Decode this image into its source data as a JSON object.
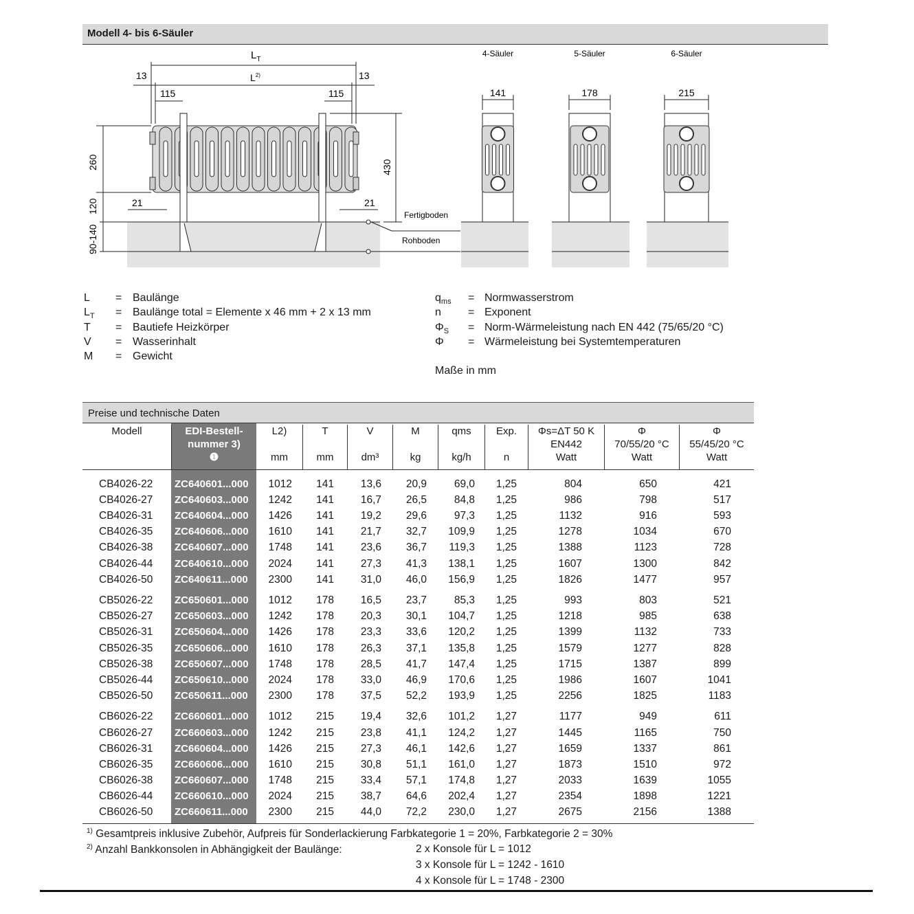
{
  "header": {
    "title": "Modell 4- bis 6-Säuler"
  },
  "diagram": {
    "front": {
      "lt": "L",
      "lt_sub": "T",
      "l": "L",
      "l_sup": "2)",
      "dim_13_left": "13",
      "dim_13_right": "13",
      "dim_115_left": "115",
      "dim_115_right": "115",
      "dim_260": "260",
      "dim_120": "120",
      "dim_90_140": "90-140",
      "dim_430": "430",
      "dim_21_left": "21",
      "dim_21_right": "21",
      "fertigboden": "Fertigboden",
      "rohboden": "Rohboden"
    },
    "side_views": [
      {
        "title": "4-Säuler",
        "width": "141"
      },
      {
        "title": "5-Säuler",
        "width": "178"
      },
      {
        "title": "6-Säuler",
        "width": "215"
      }
    ]
  },
  "legend": {
    "left": [
      {
        "sym": "L",
        "sub": "",
        "text": "Baulänge"
      },
      {
        "sym": "L",
        "sub": "T",
        "text": "Baulänge total = Elemente x 46 mm + 2 x 13 mm"
      },
      {
        "sym": "T",
        "sub": "",
        "text": "Bautiefe Heizkörper"
      },
      {
        "sym": "V",
        "sub": "",
        "text": "Wasserinhalt"
      },
      {
        "sym": "M",
        "sub": "",
        "text": "Gewicht"
      }
    ],
    "right": [
      {
        "sym": "q",
        "sub": "ms",
        "text": "Normwasserstrom"
      },
      {
        "sym": "n",
        "sub": "",
        "text": "Exponent"
      },
      {
        "sym": "Φ",
        "sub": "S",
        "text": "Norm-Wärmeleistung nach EN 442 (75/65/20 °C)"
      },
      {
        "sym": "Φ",
        "sub": "",
        "text": "Wärmeleistung bei Systemtemperaturen"
      }
    ],
    "eq": "=",
    "units_note": "Maße in mm"
  },
  "table": {
    "title": "Preise und technische Daten",
    "headers": [
      {
        "l1": "Modell",
        "l2": "",
        "l3": ""
      },
      {
        "l1": "EDI-Bestell-",
        "l2": "nummer 3)",
        "l3": "❶"
      },
      {
        "l1": "L2)",
        "l2": "",
        "l3": "mm"
      },
      {
        "l1": "T",
        "l2": "",
        "l3": "mm"
      },
      {
        "l1": "V",
        "l2": "",
        "l3": "dm³"
      },
      {
        "l1": "M",
        "l2": "",
        "l3": "kg"
      },
      {
        "l1": "qms",
        "l2": "",
        "l3": "kg/h"
      },
      {
        "l1": "Exp.",
        "l2": "",
        "l3": "n"
      },
      {
        "l1": "Φs=ΔT 50 K",
        "l2": "EN442",
        "l3": "Watt"
      },
      {
        "l1": "Φ",
        "l2": "70/55/20 °C",
        "l3": "Watt"
      },
      {
        "l1": "Φ",
        "l2": "55/45/20 °C",
        "l3": "Watt"
      }
    ],
    "groups": [
      [
        [
          "CB4026-22",
          "ZC640601...000",
          "1012",
          "141",
          "13,6",
          "20,9",
          "69,0",
          "1,25",
          "804",
          "650",
          "421"
        ],
        [
          "CB4026-27",
          "ZC640603...000",
          "1242",
          "141",
          "16,7",
          "26,5",
          "84,8",
          "1,25",
          "986",
          "798",
          "517"
        ],
        [
          "CB4026-31",
          "ZC640604...000",
          "1426",
          "141",
          "19,2",
          "29,6",
          "97,3",
          "1,25",
          "1132",
          "916",
          "593"
        ],
        [
          "CB4026-35",
          "ZC640606...000",
          "1610",
          "141",
          "21,7",
          "32,7",
          "109,9",
          "1,25",
          "1278",
          "1034",
          "670"
        ],
        [
          "CB4026-38",
          "ZC640607...000",
          "1748",
          "141",
          "23,6",
          "36,7",
          "119,3",
          "1,25",
          "1388",
          "1123",
          "728"
        ],
        [
          "CB4026-44",
          "ZC640610...000",
          "2024",
          "141",
          "27,3",
          "41,3",
          "138,1",
          "1,25",
          "1607",
          "1300",
          "842"
        ],
        [
          "CB4026-50",
          "ZC640611...000",
          "2300",
          "141",
          "31,0",
          "46,0",
          "156,9",
          "1,25",
          "1826",
          "1477",
          "957"
        ]
      ],
      [
        [
          "CB5026-22",
          "ZC650601...000",
          "1012",
          "178",
          "16,5",
          "23,7",
          "85,3",
          "1,25",
          "993",
          "803",
          "521"
        ],
        [
          "CB5026-27",
          "ZC650603...000",
          "1242",
          "178",
          "20,3",
          "30,1",
          "104,7",
          "1,25",
          "1218",
          "985",
          "638"
        ],
        [
          "CB5026-31",
          "ZC650604...000",
          "1426",
          "178",
          "23,3",
          "33,6",
          "120,2",
          "1,25",
          "1399",
          "1132",
          "733"
        ],
        [
          "CB5026-35",
          "ZC650606...000",
          "1610",
          "178",
          "26,3",
          "37,1",
          "135,8",
          "1,25",
          "1579",
          "1277",
          "828"
        ],
        [
          "CB5026-38",
          "ZC650607...000",
          "1748",
          "178",
          "28,5",
          "41,7",
          "147,4",
          "1,25",
          "1715",
          "1387",
          "899"
        ],
        [
          "CB5026-44",
          "ZC650610...000",
          "2024",
          "178",
          "33,0",
          "46,9",
          "170,6",
          "1,25",
          "1986",
          "1607",
          "1041"
        ],
        [
          "CB5026-50",
          "ZC650611...000",
          "2300",
          "178",
          "37,5",
          "52,2",
          "193,9",
          "1,25",
          "2256",
          "1825",
          "1183"
        ]
      ],
      [
        [
          "CB6026-22",
          "ZC660601...000",
          "1012",
          "215",
          "19,4",
          "32,6",
          "101,2",
          "1,27",
          "1177",
          "949",
          "611"
        ],
        [
          "CB6026-27",
          "ZC660603...000",
          "1242",
          "215",
          "23,8",
          "41,1",
          "124,2",
          "1,27",
          "1445",
          "1165",
          "750"
        ],
        [
          "CB6026-31",
          "ZC660604...000",
          "1426",
          "215",
          "27,3",
          "46,1",
          "142,6",
          "1,27",
          "1659",
          "1337",
          "861"
        ],
        [
          "CB6026-35",
          "ZC660606...000",
          "1610",
          "215",
          "30,8",
          "51,1",
          "161,0",
          "1,27",
          "1873",
          "1510",
          "972"
        ],
        [
          "CB6026-38",
          "ZC660607...000",
          "1748",
          "215",
          "33,4",
          "57,1",
          "174,8",
          "1,27",
          "2033",
          "1639",
          "1055"
        ],
        [
          "CB6026-44",
          "ZC660610...000",
          "2024",
          "215",
          "38,7",
          "64,6",
          "202,4",
          "1,27",
          "2354",
          "1898",
          "1221"
        ],
        [
          "CB6026-50",
          "ZC660611...000",
          "2300",
          "215",
          "44,0",
          "72,2",
          "230,0",
          "1,27",
          "2675",
          "2156",
          "1388"
        ]
      ]
    ]
  },
  "footnotes": {
    "f1_mark": "1)",
    "f1": "Gesamtpreis inklusive Zubehör, Aufpreis für Sonderlackierung Farbkategorie 1 = 20%, Farbkategorie 2 = 30%",
    "f2_mark": "2)",
    "f2": "Anzahl Bankkonsolen in Abhängigkeit der Baulänge:",
    "f2_items": [
      "2 x Konsole für L = 1012",
      "3 x Konsole für L = 1242 - 1610",
      "4 x Konsole für L = 1748 - 2300"
    ]
  }
}
